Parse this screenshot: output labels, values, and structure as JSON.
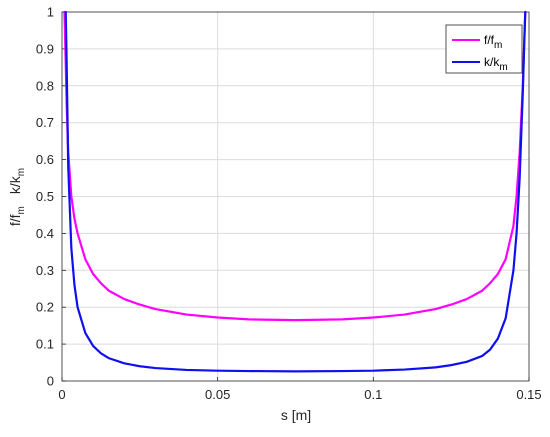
{
  "chart_data": {
    "type": "line",
    "xlabel": "s [m]",
    "ylabel": {
      "part1_base": "f/f",
      "part1_sub": "m",
      "part2_base": "k/k",
      "part2_sub": "m"
    },
    "xlim": [
      0,
      0.15
    ],
    "ylim": [
      0,
      1
    ],
    "xticks": [
      0,
      0.05,
      0.1,
      0.15
    ],
    "xtick_labels": [
      "0",
      "0.05",
      "0.1",
      "0.15"
    ],
    "yticks": [
      0,
      0.1,
      0.2,
      0.3,
      0.4,
      0.5,
      0.6,
      0.7,
      0.8,
      0.9,
      1
    ],
    "ytick_labels": [
      "0",
      "0.1",
      "0.2",
      "0.3",
      "0.4",
      "0.5",
      "0.6",
      "0.7",
      "0.8",
      "0.9",
      "1"
    ],
    "grid": true,
    "legend_position": "top-right",
    "series": [
      {
        "name_base": "f/f",
        "name_sub": "m",
        "color": "#ff00ff",
        "x": [
          0.0008,
          0.001,
          0.0015,
          0.002,
          0.003,
          0.004,
          0.005,
          0.0075,
          0.01,
          0.0125,
          0.015,
          0.02,
          0.025,
          0.03,
          0.04,
          0.05,
          0.06,
          0.075,
          0.09,
          0.1,
          0.11,
          0.12,
          0.125,
          0.13,
          0.135,
          0.1375,
          0.14,
          0.1425,
          0.145,
          0.146,
          0.147,
          0.148,
          0.1485,
          0.1488
        ],
        "y": [
          1.0,
          0.93,
          0.75,
          0.62,
          0.5,
          0.44,
          0.4,
          0.33,
          0.29,
          0.265,
          0.245,
          0.222,
          0.207,
          0.195,
          0.18,
          0.172,
          0.167,
          0.165,
          0.167,
          0.172,
          0.18,
          0.195,
          0.207,
          0.222,
          0.245,
          0.265,
          0.29,
          0.33,
          0.42,
          0.5,
          0.62,
          0.8,
          0.93,
          1.0
        ]
      },
      {
        "name_base": "k/k",
        "name_sub": "m",
        "color": "#1010ee",
        "x": [
          0.0012,
          0.0015,
          0.002,
          0.003,
          0.004,
          0.005,
          0.0075,
          0.01,
          0.0125,
          0.015,
          0.02,
          0.025,
          0.03,
          0.04,
          0.05,
          0.06,
          0.075,
          0.09,
          0.1,
          0.11,
          0.12,
          0.125,
          0.13,
          0.135,
          0.1375,
          0.14,
          0.1425,
          0.145,
          0.146,
          0.147,
          0.148,
          0.1485,
          0.1488
        ],
        "y": [
          1.0,
          0.86,
          0.58,
          0.36,
          0.26,
          0.2,
          0.13,
          0.095,
          0.075,
          0.062,
          0.048,
          0.04,
          0.035,
          0.03,
          0.028,
          0.027,
          0.026,
          0.027,
          0.028,
          0.031,
          0.037,
          0.043,
          0.052,
          0.068,
          0.085,
          0.115,
          0.17,
          0.3,
          0.4,
          0.55,
          0.78,
          0.92,
          1.0
        ]
      }
    ]
  }
}
